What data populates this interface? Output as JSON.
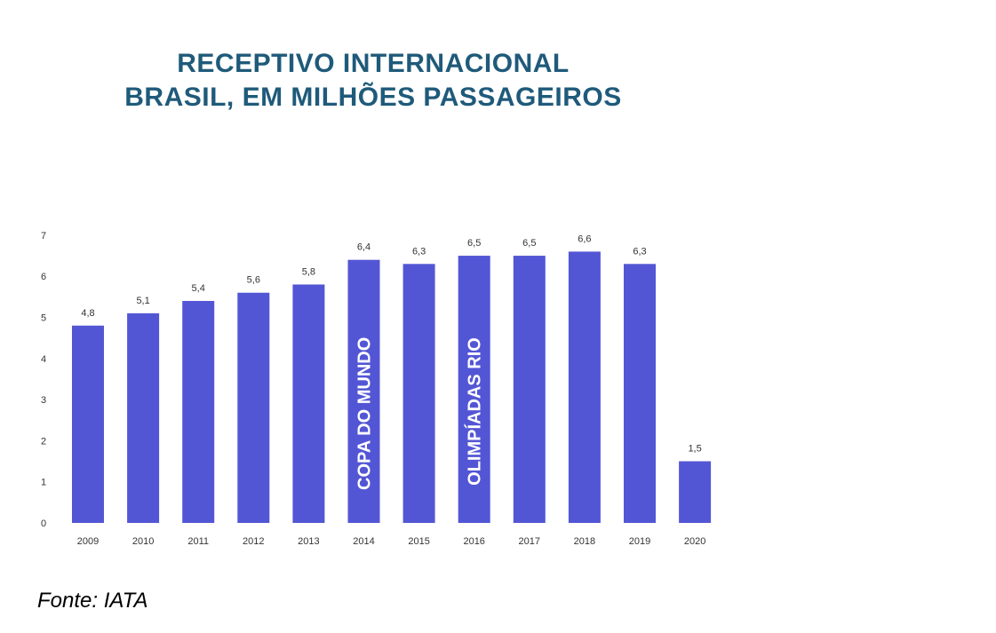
{
  "title_line1": "RECEPTIVO INTERNACIONAL",
  "title_line2": "BRASIL, EM MILHÕES PASSAGEIROS",
  "source": "Fonte: IATA",
  "colors": {
    "bar": "#5356d4",
    "title": "#1f5a7a",
    "label": "#333333",
    "annotation": "#ffffff"
  },
  "chart_data": {
    "type": "bar",
    "categories": [
      "2009",
      "2010",
      "2011",
      "2012",
      "2013",
      "2014",
      "2015",
      "2016",
      "2017",
      "2018",
      "2019",
      "2020"
    ],
    "values": [
      4.8,
      5.1,
      5.4,
      5.6,
      5.8,
      6.4,
      6.3,
      6.5,
      6.5,
      6.6,
      6.3,
      1.5
    ],
    "value_labels": [
      "4,8",
      "5,1",
      "5,4",
      "5,6",
      "5,8",
      "6,4",
      "6,3",
      "6,5",
      "6,5",
      "6,6",
      "6,3",
      "1,5"
    ],
    "yticks": [
      "0",
      "1",
      "2",
      "3",
      "4",
      "5",
      "6",
      "7"
    ],
    "ylim": [
      0,
      7
    ],
    "grid": false,
    "annotations": [
      {
        "category": "2014",
        "text": "COPA DO MUNDO"
      },
      {
        "category": "2016",
        "text": "OLIMPÍADAS RIO"
      }
    ]
  }
}
